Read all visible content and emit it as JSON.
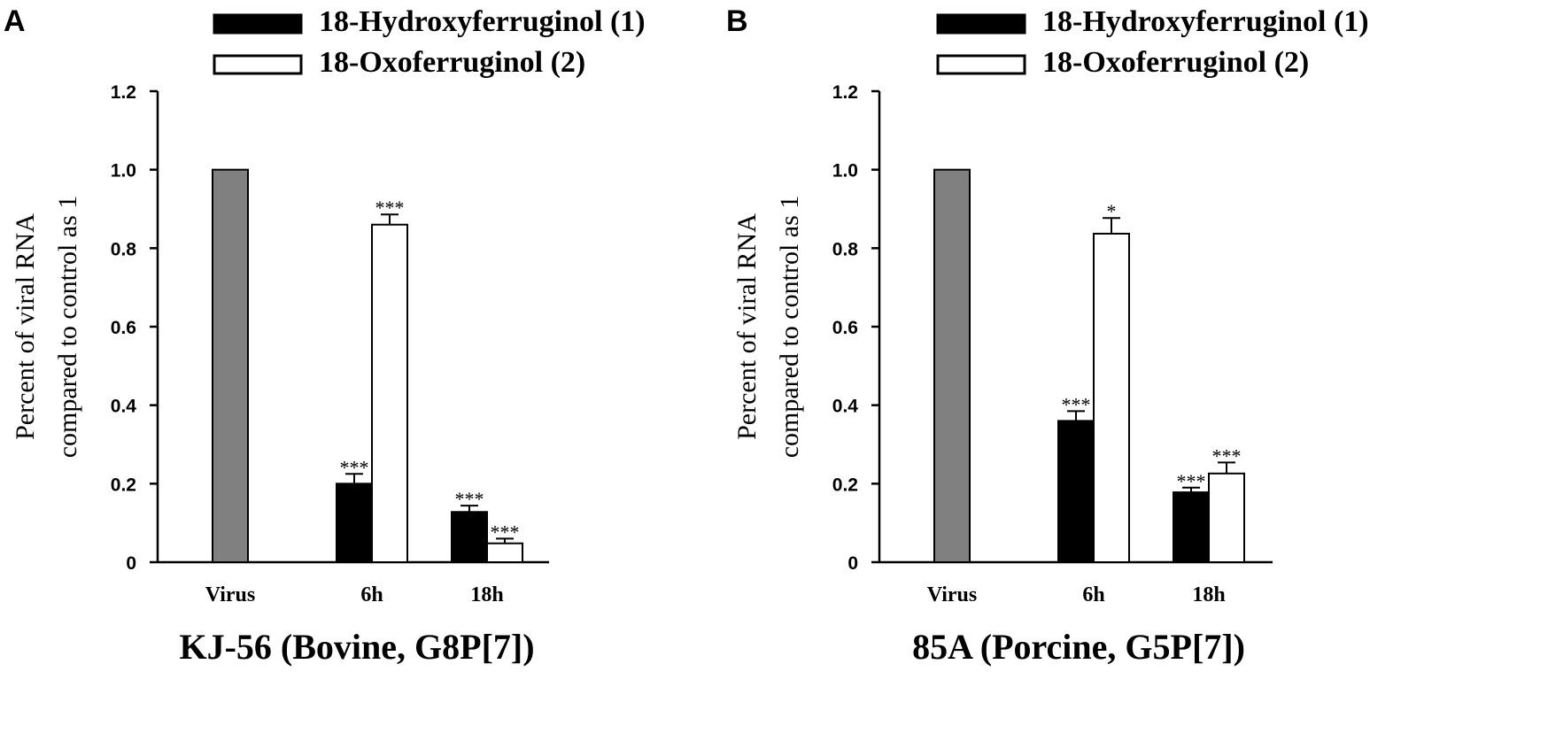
{
  "chart_data": [
    {
      "type": "bar",
      "panel": "A",
      "title": "KJ-56 (Bovine, G8P[7])",
      "ylabel": [
        "Percent of viral RNA",
        "compared to control as 1"
      ],
      "xlabel": "",
      "ylim": [
        0,
        1.2
      ],
      "yticks": [
        "0",
        "0.2",
        "0.4",
        "0.6",
        "0.8",
        "1.0",
        "1.2"
      ],
      "categories": [
        "Virus",
        "6h",
        "18h"
      ],
      "series": [
        {
          "name": "Virus",
          "color": "#808080",
          "values": [
            1.0,
            null,
            null
          ],
          "errors": [
            0,
            null,
            null
          ],
          "sig": [
            "",
            null,
            null
          ]
        },
        {
          "name": "18-Hydroxyferruginol (1)",
          "color": "#000000",
          "values": [
            null,
            0.2,
            0.128
          ],
          "errors": [
            null,
            0.025,
            0.016
          ],
          "sig": [
            null,
            "***",
            "***"
          ]
        },
        {
          "name": "18-Oxoferruginol (2)",
          "color": "#ffffff",
          "values": [
            null,
            0.86,
            0.048
          ],
          "errors": [
            null,
            0.026,
            0.012
          ],
          "sig": [
            null,
            "***",
            "***"
          ]
        }
      ],
      "legend": [
        {
          "label": "18-Hydroxyferruginol (1)",
          "color": "#000000"
        },
        {
          "label": "18-Oxoferruginol (2)",
          "color": "#ffffff"
        }
      ],
      "legend_position": "top-center",
      "grid": false
    },
    {
      "type": "bar",
      "panel": "B",
      "title": "85A (Porcine, G5P[7])",
      "ylabel": [
        "Percent of viral RNA",
        "compared to control as 1"
      ],
      "xlabel": "",
      "ylim": [
        0,
        1.2
      ],
      "yticks": [
        "0",
        "0.2",
        "0.4",
        "0.6",
        "0.8",
        "1.0",
        "1.2"
      ],
      "categories": [
        "Virus",
        "6h",
        "18h"
      ],
      "series": [
        {
          "name": "Virus",
          "color": "#808080",
          "values": [
            1.0,
            null,
            null
          ],
          "errors": [
            0,
            null,
            null
          ],
          "sig": [
            "",
            null,
            null
          ]
        },
        {
          "name": "18-Hydroxyferruginol (1)",
          "color": "#000000",
          "values": [
            null,
            0.36,
            0.178
          ],
          "errors": [
            null,
            0.025,
            0.012
          ],
          "sig": [
            null,
            "***",
            "***"
          ]
        },
        {
          "name": "18-Oxoferruginol (2)",
          "color": "#ffffff",
          "values": [
            null,
            0.837,
            0.226
          ],
          "errors": [
            null,
            0.04,
            0.028
          ],
          "sig": [
            null,
            "*",
            "***"
          ]
        }
      ],
      "legend": [
        {
          "label": "18-Hydroxyferruginol (1)",
          "color": "#000000"
        },
        {
          "label": "18-Oxoferruginol (2)",
          "color": "#ffffff"
        }
      ],
      "legend_position": "top-center",
      "grid": false
    }
  ]
}
